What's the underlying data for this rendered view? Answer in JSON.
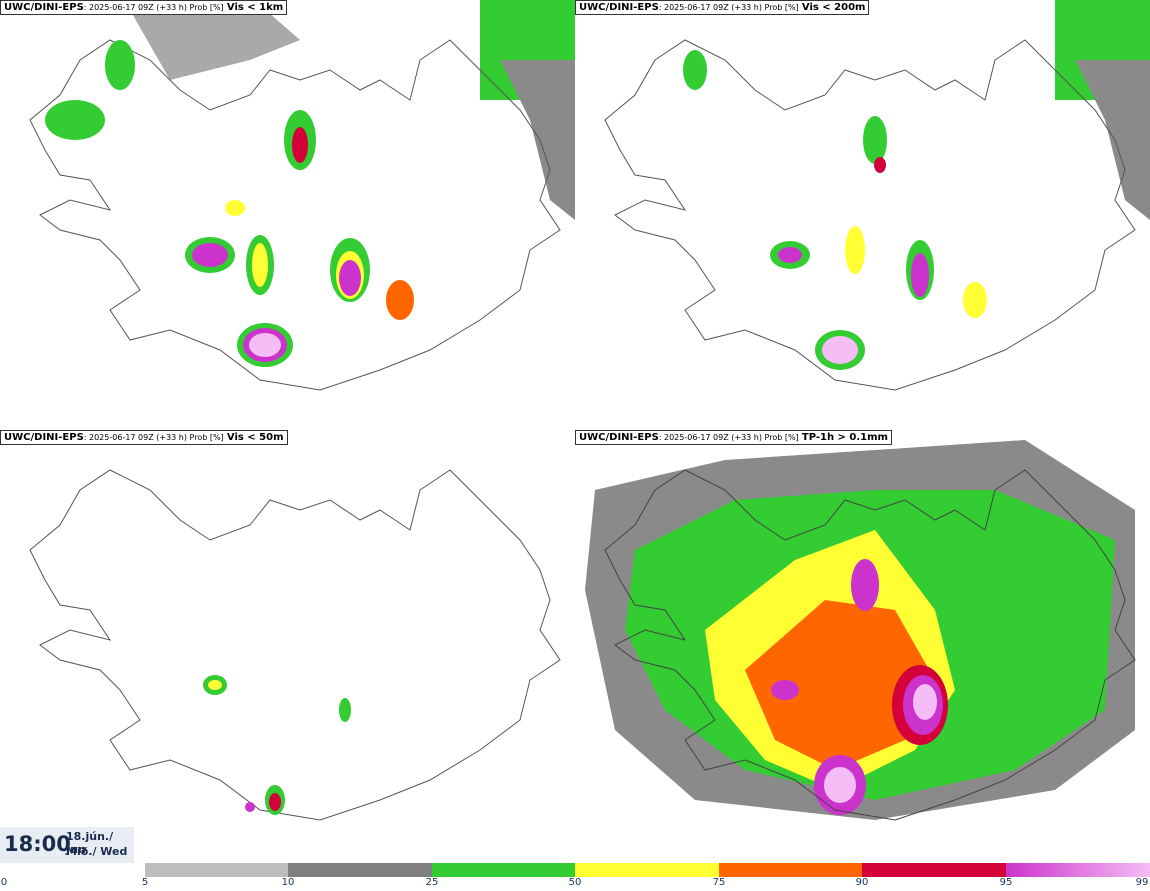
{
  "panels": [
    {
      "model": "UWC/DINI-EPS",
      "meta": ": 2025-06-17 09Z (+33 h) Prob [%]",
      "variable": "Vis < 1km"
    },
    {
      "model": "UWC/DINI-EPS",
      "meta": ": 2025-06-17 09Z (+33 h) Prob [%]",
      "variable": "Vis < 200m"
    },
    {
      "model": "UWC/DINI-EPS",
      "meta": ": 2025-06-17 09Z (+33 h) Prob [%]",
      "variable": "Vis < 50m"
    },
    {
      "model": "UWC/DINI-EPS",
      "meta": ": 2025-06-17 09Z (+33 h) Prob [%]",
      "variable": "TP-1h > 0.1mm"
    }
  ],
  "valid_time": {
    "time": "18:00",
    "date_line1": "18.jún./ Jun",
    "date_line2": "Mið./ Wed"
  },
  "colorbar": {
    "ticks": [
      "0",
      "5",
      "10",
      "25",
      "50",
      "75",
      "90",
      "95",
      "99"
    ],
    "colors": [
      "#bdbdbd",
      "#7f7f7f",
      "#33cc33",
      "#ffff33",
      "#ff6600",
      "#d4003a",
      "#cc33cc",
      "#f5bdf5"
    ]
  }
}
